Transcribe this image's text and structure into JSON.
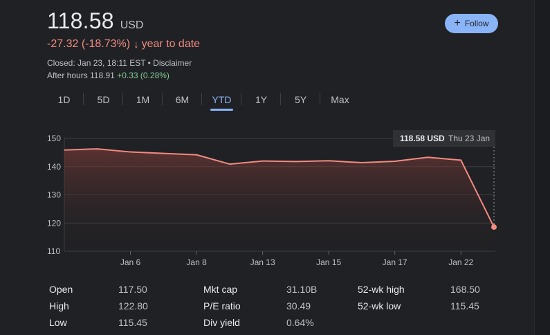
{
  "quote": {
    "price": "118.58",
    "currency": "USD",
    "change": "-27.32 (-18.73%)",
    "arrow_icon": "arrow-down-icon",
    "period": "year to date",
    "closed": "Closed: Jan 23, 18:11 EST • Disclaimer",
    "after_hours_label": "After hours 118.91",
    "after_hours_change": "+0.33 (0.28%)",
    "follow_label": "Follow",
    "follow_icon": "plus-icon"
  },
  "tabs": [
    {
      "label": "1D"
    },
    {
      "label": "5D"
    },
    {
      "label": "1M"
    },
    {
      "label": "6M"
    },
    {
      "label": "YTD"
    },
    {
      "label": "1Y"
    },
    {
      "label": "5Y"
    },
    {
      "label": "Max"
    }
  ],
  "active_tab": "YTD",
  "tooltip": {
    "value": "118.58 USD",
    "date": "Thu 23 Jan"
  },
  "chart_data": {
    "type": "area",
    "x": [
      "Jan 2",
      "Jan 3",
      "Jan 6",
      "Jan 7",
      "Jan 8",
      "Jan 10",
      "Jan 13",
      "Jan 14",
      "Jan 15",
      "Jan 16",
      "Jan 17",
      "Jan 21",
      "Jan 22",
      "Jan 23"
    ],
    "values": [
      145.9,
      146.3,
      145.2,
      144.7,
      144.2,
      140.9,
      142.0,
      141.8,
      142.1,
      141.4,
      141.9,
      143.3,
      142.3,
      118.58
    ],
    "ylim": [
      110,
      150
    ],
    "yticks": [
      "110",
      "120",
      "130",
      "140",
      "150"
    ],
    "xticks": [
      "Jan 6",
      "Jan 8",
      "Jan 13",
      "Jan 15",
      "Jan 17",
      "Jan 22"
    ],
    "line_color": "#f28b82",
    "grid": true
  },
  "stats": [
    {
      "label": "Open",
      "value": "117.50"
    },
    {
      "label": "High",
      "value": "122.80"
    },
    {
      "label": "Low",
      "value": "115.45"
    },
    {
      "label": "Mkt cap",
      "value": "31.10B"
    },
    {
      "label": "P/E ratio",
      "value": "30.49"
    },
    {
      "label": "Div yield",
      "value": "0.64%"
    },
    {
      "label": "52-wk high",
      "value": "168.50"
    },
    {
      "label": "52-wk low",
      "value": "115.45"
    }
  ]
}
